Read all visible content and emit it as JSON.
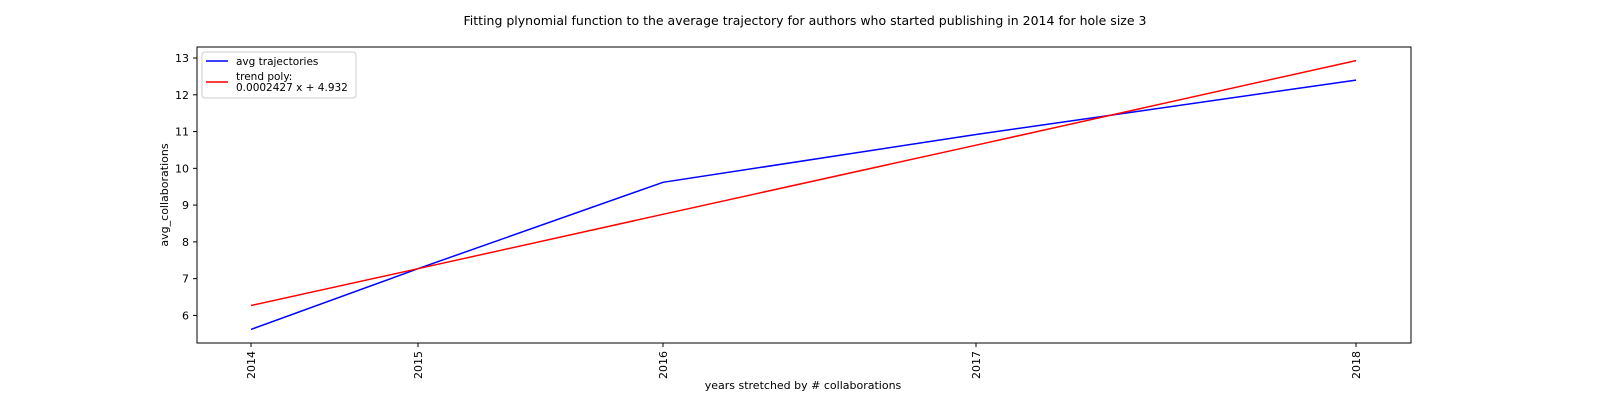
{
  "chart_data": {
    "type": "line",
    "title": "Fitting plynomial function to the average trajectory for authors who started publishing in 2014 for hole size 3",
    "xlabel": "years stretched by # collaborations",
    "ylabel": "avg_collaborations",
    "x_ticks": [
      "2014",
      "2015",
      "2016",
      "2017",
      "2018"
    ],
    "y_ticks": [
      6,
      7,
      8,
      9,
      10,
      11,
      12,
      13
    ],
    "ylim": [
      5.25,
      13.3
    ],
    "grid": false,
    "legend_position": "top-left",
    "x": [
      "2014",
      "2015",
      "2016",
      "2017",
      "2018"
    ],
    "series": [
      {
        "name": "avg trajectories",
        "color": "#0000ff",
        "values": [
          5.62,
          7.27,
          9.62,
          10.92,
          12.4
        ]
      },
      {
        "name": "trend poly:",
        "name_line2": "0.0002427 x + 4.932",
        "color": "#ff0000",
        "values": [
          6.27,
          7.27,
          8.75,
          10.63,
          12.93
        ]
      }
    ]
  }
}
